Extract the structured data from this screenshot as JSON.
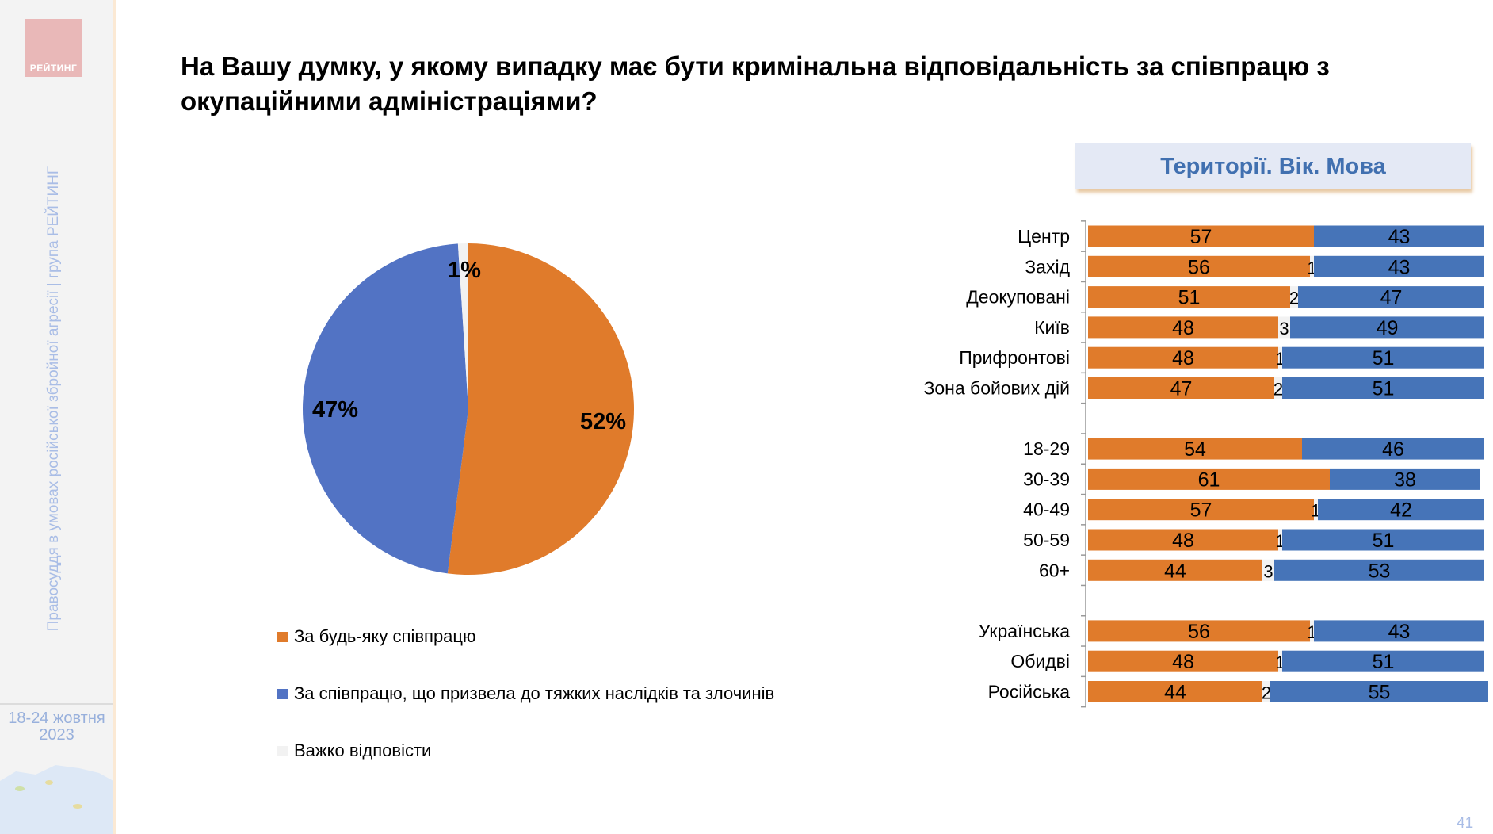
{
  "sidebar": {
    "logo_text": "РЕЙТИНГ",
    "vertical_text": "Правосуддя в умовах російської збройної агресії | група РЕЙТИНГ",
    "date_line1": "18-24 жовтня",
    "date_line2": "2023"
  },
  "title": "На Вашу думку, у якому випадку має бути кримінальна відповідальність за співпрацю з окупаційними адміністраціями?",
  "page_number": "41",
  "colors": {
    "orange": "#E07B2B",
    "blue_bar": "#4674B8",
    "blue_pie": "#5273C4",
    "grey": "#F2F2F2"
  },
  "chart_data": [
    {
      "type": "pie",
      "title": "",
      "slices": [
        {
          "label": "За будь-яку співпрацю",
          "value": 52,
          "display": "52%"
        },
        {
          "label": "За співпрацю, що призвела до тяжких наслідків та злочинів",
          "value": 47,
          "display": "47%"
        },
        {
          "label": "Важко відповісти",
          "value": 1,
          "display": "1%"
        }
      ],
      "legend_position": "bottom"
    },
    {
      "type": "bar",
      "stacked": true,
      "orientation": "horizontal",
      "title": "Території. Вік. Мова",
      "xlim": [
        0,
        100
      ],
      "series_names": [
        "За будь-яку співпрацю",
        "Важко відповісти",
        "За співпрацю, що призвела до тяжких наслідків та злочинів"
      ],
      "rows": [
        {
          "label": "Центр",
          "values": [
            57,
            0,
            43
          ]
        },
        {
          "label": "Захід",
          "values": [
            56,
            1,
            43
          ]
        },
        {
          "label": "Деокуповані",
          "values": [
            51,
            2,
            47
          ]
        },
        {
          "label": "Київ",
          "values": [
            48,
            3,
            49
          ]
        },
        {
          "label": "Прифронтові",
          "values": [
            48,
            1,
            51
          ]
        },
        {
          "label": "Зона бойових дій",
          "values": [
            47,
            2,
            51
          ]
        },
        null,
        {
          "label": "18-29",
          "values": [
            54,
            0,
            46
          ]
        },
        {
          "label": "30-39",
          "values": [
            61,
            0,
            38
          ]
        },
        {
          "label": "40-49",
          "values": [
            57,
            1,
            42
          ]
        },
        {
          "label": "50-59",
          "values": [
            48,
            1,
            51
          ]
        },
        {
          "label": "60+",
          "values": [
            44,
            3,
            53
          ]
        },
        null,
        {
          "label": "Українська",
          "values": [
            56,
            1,
            43
          ]
        },
        {
          "label": "Обидві",
          "values": [
            48,
            1,
            51
          ]
        },
        {
          "label": "Російська",
          "values": [
            44,
            2,
            55
          ]
        }
      ]
    }
  ]
}
